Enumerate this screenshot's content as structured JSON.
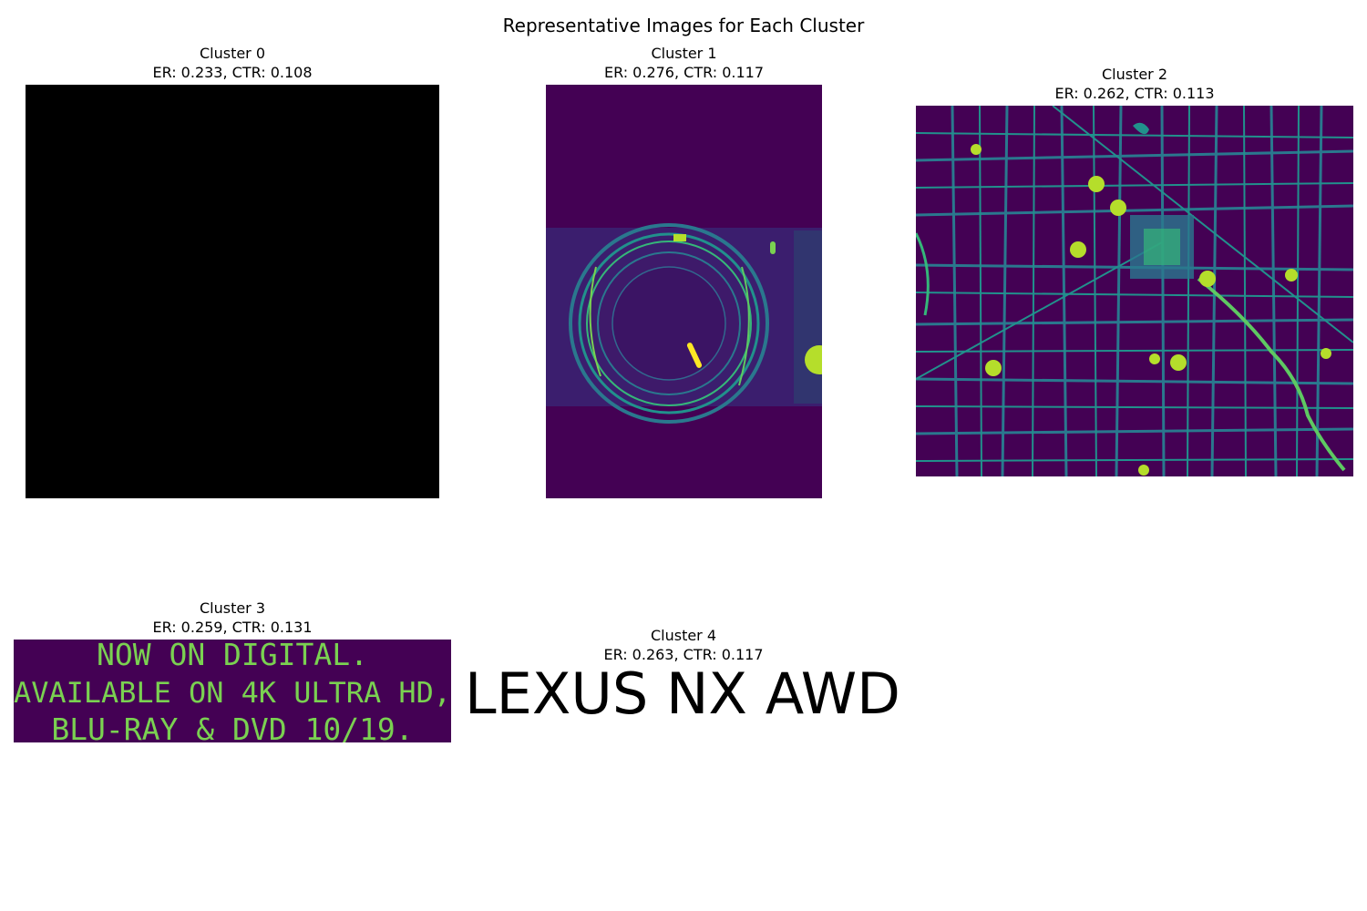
{
  "figure": {
    "title": "Representative Images for Each Cluster"
  },
  "panels": [
    {
      "name": "Cluster 0",
      "metrics": "ER: 0.233, CTR: 0.108",
      "image": "black-square"
    },
    {
      "name": "Cluster 1",
      "metrics": "ER: 0.276, CTR: 0.117",
      "image": "camera-lens"
    },
    {
      "name": "Cluster 2",
      "metrics": "ER: 0.262, CTR: 0.113",
      "image": "road-map"
    },
    {
      "name": "Cluster 3",
      "metrics": "ER: 0.259, CTR: 0.131",
      "image": "text-banner",
      "image_text": [
        "NOW ON DIGITAL.",
        "AVAILABLE ON 4K ULTRA HD,",
        "BLU-RAY & DVD 10/19."
      ]
    },
    {
      "name": "Cluster 4",
      "metrics": "ER: 0.263, CTR: 0.117",
      "image": "text-logo",
      "image_text": [
        "LEXUS NX AWD"
      ]
    }
  ],
  "colors": {
    "viridis_dark": "#440154",
    "viridis_mid": "#21918c",
    "viridis_teal": "#2a788e",
    "viridis_yellow": "#fde725",
    "viridis_green": "#7ad151"
  }
}
